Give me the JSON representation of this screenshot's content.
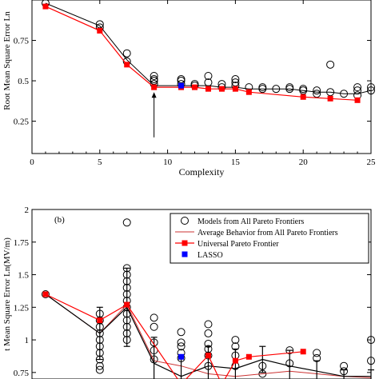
{
  "chart_data": [
    {
      "type": "scatter",
      "panel_label": "",
      "xlabel": "Complexity",
      "ylabel": "Root Mean Square Error Ln",
      "xlim": [
        0,
        25
      ],
      "ylim": [
        0.05,
        1.0
      ],
      "xticks": [
        0,
        5,
        10,
        15,
        20,
        25
      ],
      "yticks": [
        0.25,
        0.5,
        0.75
      ],
      "grid": false,
      "series": [
        {
          "name": "",
          "kind": "open-circles",
          "color": "#000000",
          "points": [
            [
              1,
              0.98
            ],
            [
              5,
              0.85
            ],
            [
              5,
              0.83
            ],
            [
              7,
              0.67
            ],
            [
              7,
              0.62
            ],
            [
              9,
              0.53
            ],
            [
              9,
              0.51
            ],
            [
              9,
              0.5
            ],
            [
              9,
              0.48
            ],
            [
              11,
              0.51
            ],
            [
              11,
              0.5
            ],
            [
              11,
              0.48
            ],
            [
              12,
              0.48
            ],
            [
              12,
              0.47
            ],
            [
              13,
              0.53
            ],
            [
              13,
              0.49
            ],
            [
              14,
              0.48
            ],
            [
              14,
              0.46
            ],
            [
              15,
              0.51
            ],
            [
              15,
              0.49
            ],
            [
              15,
              0.47
            ],
            [
              16,
              0.46
            ],
            [
              17,
              0.46
            ],
            [
              17,
              0.45
            ],
            [
              18,
              0.45
            ],
            [
              19,
              0.46
            ],
            [
              19,
              0.45
            ],
            [
              20,
              0.45
            ],
            [
              20,
              0.44
            ],
            [
              21,
              0.44
            ],
            [
              21,
              0.42
            ],
            [
              22,
              0.6
            ],
            [
              22,
              0.43
            ],
            [
              23,
              0.42
            ],
            [
              24,
              0.46
            ],
            [
              24,
              0.44
            ],
            [
              24,
              0.41
            ],
            [
              25,
              0.46
            ],
            [
              25,
              0.44
            ]
          ]
        },
        {
          "name": "",
          "kind": "line",
          "color": "#000000",
          "points": [
            [
              1,
              0.98
            ],
            [
              5,
              0.84
            ],
            [
              7,
              0.63
            ],
            [
              9,
              0.47
            ],
            [
              11,
              0.47
            ],
            [
              12,
              0.47
            ],
            [
              13,
              0.47
            ],
            [
              14,
              0.46
            ],
            [
              15,
              0.46
            ],
            [
              16,
              0.45
            ],
            [
              17,
              0.45
            ],
            [
              18,
              0.45
            ],
            [
              19,
              0.45
            ],
            [
              20,
              0.44
            ],
            [
              21,
              0.43
            ],
            [
              22,
              0.43
            ],
            [
              23,
              0.42
            ],
            [
              24,
              0.42
            ],
            [
              25,
              0.44
            ]
          ]
        },
        {
          "name": "",
          "kind": "red-squares-line",
          "color": "#ff0000",
          "points": [
            [
              1,
              0.96
            ],
            [
              5,
              0.81
            ],
            [
              7,
              0.6
            ],
            [
              9,
              0.46
            ],
            [
              11,
              0.46
            ],
            [
              12,
              0.46
            ],
            [
              13,
              0.45
            ],
            [
              14,
              0.45
            ],
            [
              15,
              0.45
            ],
            [
              16,
              0.43
            ],
            [
              20,
              0.4
            ],
            [
              22,
              0.39
            ],
            [
              24,
              0.38
            ]
          ]
        },
        {
          "name": "",
          "kind": "blue-square",
          "color": "#0000ff",
          "points": [
            [
              11,
              0.47
            ]
          ]
        }
      ],
      "annotation": {
        "kind": "arrow",
        "x": 9,
        "y_from": 0.15,
        "y_to": 0.43
      }
    },
    {
      "type": "scatter",
      "panel_label": "(b)",
      "xlabel": "",
      "ylabel": "t Mean Square Error Ln(MV/m)",
      "xlim": [
        0,
        25
      ],
      "ylim": [
        0.7,
        2.0
      ],
      "yticks": [
        0.75,
        1,
        1.25,
        1.5,
        1.75,
        2
      ],
      "ytick_labels": [
        "0.75",
        "1",
        "1.25",
        "1.5",
        "1.75",
        "2"
      ],
      "grid": false,
      "legend": {
        "placement": "top-right",
        "entries": [
          {
            "label": "Models from All Pareto Frontiers",
            "marker": "open-circle",
            "color": "#000000"
          },
          {
            "label": "Average Behavior from All Pareto Frontiers",
            "marker": "line",
            "color": "#cc3333"
          },
          {
            "label": "Universal Pareto Frontier",
            "marker": "red-square-line",
            "color": "#ff0000"
          },
          {
            "label": "LASSO",
            "marker": "blue-square",
            "color": "#0000ff"
          }
        ]
      },
      "series": [
        {
          "name": "Models from All Pareto Frontiers",
          "kind": "open-circles",
          "color": "#000000",
          "points": [
            [
              1,
              1.35
            ],
            [
              5,
              1.2
            ],
            [
              5,
              1.15
            ],
            [
              5,
              1.1
            ],
            [
              5,
              1.05
            ],
            [
              5,
              1.0
            ],
            [
              5,
              0.95
            ],
            [
              5,
              0.9
            ],
            [
              5,
              0.85
            ],
            [
              5,
              0.8
            ],
            [
              5,
              0.77
            ],
            [
              7,
              1.9
            ],
            [
              7,
              1.55
            ],
            [
              7,
              1.5
            ],
            [
              7,
              1.45
            ],
            [
              7,
              1.4
            ],
            [
              7,
              1.35
            ],
            [
              7,
              1.3
            ],
            [
              7,
              1.25
            ],
            [
              7,
              1.2
            ],
            [
              7,
              1.15
            ],
            [
              7,
              1.1
            ],
            [
              7,
              1.05
            ],
            [
              7,
              1.0
            ],
            [
              9,
              1.17
            ],
            [
              9,
              1.1
            ],
            [
              9,
              0.98
            ],
            [
              9,
              0.92
            ],
            [
              9,
              0.85
            ],
            [
              11,
              1.06
            ],
            [
              11,
              0.98
            ],
            [
              11,
              0.95
            ],
            [
              11,
              0.9
            ],
            [
              11,
              0.86
            ],
            [
              13,
              1.12
            ],
            [
              13,
              1.05
            ],
            [
              13,
              0.97
            ],
            [
              13,
              0.93
            ],
            [
              13,
              0.88
            ],
            [
              13,
              0.8
            ],
            [
              15,
              1.0
            ],
            [
              15,
              0.95
            ],
            [
              15,
              0.88
            ],
            [
              15,
              0.8
            ],
            [
              17,
              0.8
            ],
            [
              17,
              0.74
            ],
            [
              19,
              0.92
            ],
            [
              19,
              0.82
            ],
            [
              21,
              0.9
            ],
            [
              21,
              0.86
            ],
            [
              23,
              0.8
            ],
            [
              23,
              0.76
            ],
            [
              25,
              1.0
            ],
            [
              25,
              0.84
            ]
          ]
        },
        {
          "name": "Average Behavior from All Pareto Frontiers",
          "kind": "line",
          "color": "#cc3333",
          "points": [
            [
              1,
              1.35
            ],
            [
              5,
              1.05
            ],
            [
              7,
              1.27
            ],
            [
              9,
              0.84
            ],
            [
              11,
              0.8
            ],
            [
              13,
              0.74
            ],
            [
              15,
              0.72
            ],
            [
              17,
              0.74
            ],
            [
              19,
              0.76
            ],
            [
              21,
              0.74
            ],
            [
              23,
              0.72
            ],
            [
              25,
              0.71
            ]
          ]
        },
        {
          "name": "",
          "kind": "black-errorbars-line",
          "color": "#000000",
          "points": [
            [
              1,
              1.35
            ],
            [
              5,
              1.05
            ],
            [
              7,
              1.25
            ],
            [
              9,
              0.82
            ],
            [
              11,
              0.72
            ],
            [
              13,
              0.8
            ],
            [
              15,
              0.78
            ],
            [
              17,
              0.85
            ],
            [
              19,
              0.8
            ],
            [
              21,
              0.76
            ],
            [
              23,
              0.72
            ],
            [
              25,
              0.72
            ]
          ],
          "errors": [
            0.0,
            0.2,
            0.3,
            0.2,
            0.15,
            0.15,
            0.15,
            0.1,
            0.12,
            0.08,
            0.05,
            0.05
          ]
        },
        {
          "name": "Universal Pareto Frontier",
          "kind": "red-squares-line",
          "color": "#ff0000",
          "points": [
            [
              1,
              1.35
            ],
            [
              5,
              1.15
            ],
            [
              7,
              1.27
            ],
            [
              11,
              0.66
            ],
            [
              13,
              0.88
            ],
            [
              14,
              0.66
            ],
            [
              15,
              0.84
            ],
            [
              16,
              0.87
            ],
            [
              20,
              0.91
            ]
          ]
        },
        {
          "name": "LASSO",
          "kind": "blue-square",
          "color": "#0000ff",
          "points": [
            [
              11,
              0.87
            ]
          ]
        }
      ]
    }
  ]
}
